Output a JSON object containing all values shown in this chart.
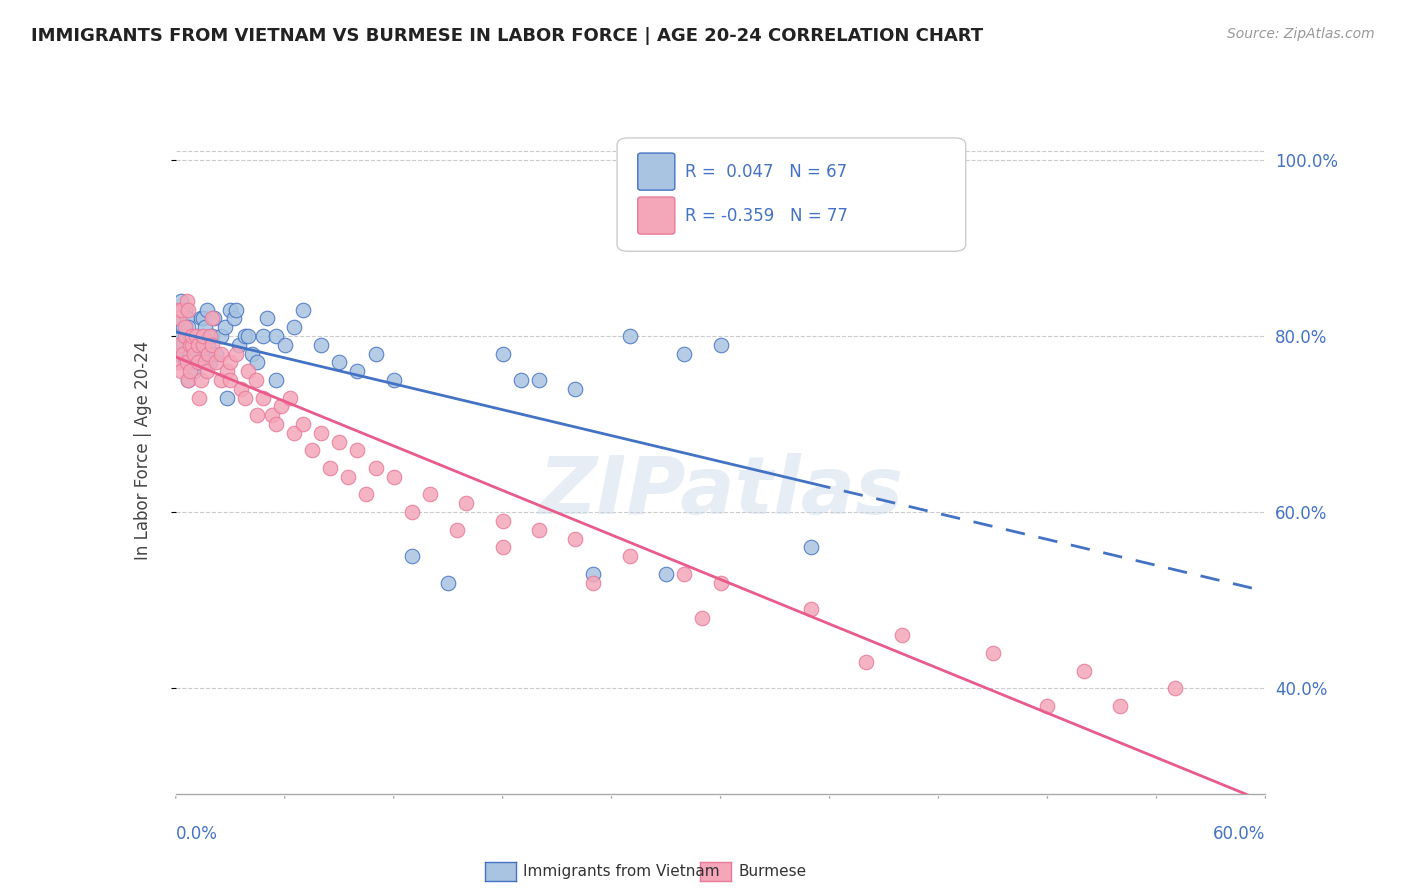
{
  "title": "IMMIGRANTS FROM VIETNAM VS BURMESE IN LABOR FORCE | AGE 20-24 CORRELATION CHART",
  "source": "Source: ZipAtlas.com",
  "ylabel": "In Labor Force | Age 20-24",
  "xmin": 0.0,
  "xmax": 0.6,
  "ymin": 0.28,
  "ymax": 1.06,
  "yticks": [
    0.4,
    0.6,
    0.8,
    1.0
  ],
  "ytick_labels": [
    "40.0%",
    "60.0%",
    "80.0%",
    "100.0%"
  ],
  "color_viet": "#a8c4e0",
  "color_burm": "#f4a7b9",
  "color_viet_line": "#4472c4",
  "color_burm_line": "#e85b8a",
  "color_axis_label": "#4472c4",
  "color_burm_edge": "#e8799a",
  "background": "#ffffff",
  "watermark": "ZIPatlas",
  "viet_x": [
    0.001,
    0.002,
    0.002,
    0.003,
    0.003,
    0.004,
    0.004,
    0.005,
    0.005,
    0.006,
    0.006,
    0.007,
    0.007,
    0.008,
    0.008,
    0.009,
    0.009,
    0.01,
    0.011,
    0.012,
    0.013,
    0.014,
    0.015,
    0.015,
    0.016,
    0.017,
    0.018,
    0.018,
    0.019,
    0.02,
    0.021,
    0.022,
    0.025,
    0.027,
    0.028,
    0.03,
    0.032,
    0.033,
    0.035,
    0.038,
    0.04,
    0.042,
    0.045,
    0.048,
    0.05,
    0.055,
    0.055,
    0.06,
    0.065,
    0.07,
    0.08,
    0.09,
    0.1,
    0.11,
    0.12,
    0.13,
    0.15,
    0.18,
    0.19,
    0.2,
    0.22,
    0.23,
    0.25,
    0.27,
    0.28,
    0.3,
    0.35
  ],
  "viet_y": [
    0.79,
    0.78,
    0.82,
    0.8,
    0.84,
    0.81,
    0.79,
    0.83,
    0.77,
    0.82,
    0.8,
    0.75,
    0.81,
    0.8,
    0.78,
    0.77,
    0.79,
    0.76,
    0.78,
    0.8,
    0.77,
    0.82,
    0.8,
    0.82,
    0.81,
    0.83,
    0.79,
    0.78,
    0.77,
    0.8,
    0.82,
    0.78,
    0.8,
    0.81,
    0.73,
    0.83,
    0.82,
    0.83,
    0.79,
    0.8,
    0.8,
    0.78,
    0.77,
    0.8,
    0.82,
    0.8,
    0.75,
    0.79,
    0.81,
    0.83,
    0.79,
    0.77,
    0.76,
    0.78,
    0.75,
    0.55,
    0.52,
    0.78,
    0.75,
    0.75,
    0.74,
    0.53,
    0.8,
    0.53,
    0.78,
    0.79,
    0.56
  ],
  "burm_x": [
    0.001,
    0.001,
    0.002,
    0.002,
    0.003,
    0.003,
    0.004,
    0.005,
    0.005,
    0.006,
    0.006,
    0.007,
    0.007,
    0.008,
    0.008,
    0.009,
    0.009,
    0.01,
    0.011,
    0.012,
    0.012,
    0.013,
    0.014,
    0.015,
    0.015,
    0.016,
    0.017,
    0.018,
    0.019,
    0.02,
    0.02,
    0.022,
    0.025,
    0.025,
    0.028,
    0.03,
    0.03,
    0.033,
    0.036,
    0.038,
    0.04,
    0.044,
    0.045,
    0.048,
    0.053,
    0.055,
    0.058,
    0.063,
    0.065,
    0.07,
    0.075,
    0.08,
    0.085,
    0.09,
    0.095,
    0.1,
    0.105,
    0.11,
    0.12,
    0.13,
    0.14,
    0.155,
    0.16,
    0.18,
    0.18,
    0.2,
    0.22,
    0.23,
    0.25,
    0.28,
    0.29,
    0.3,
    0.35,
    0.38,
    0.4,
    0.45,
    0.48,
    0.5,
    0.52,
    0.55
  ],
  "burm_y": [
    0.77,
    0.83,
    0.79,
    0.82,
    0.76,
    0.83,
    0.78,
    0.8,
    0.81,
    0.77,
    0.84,
    0.75,
    0.83,
    0.76,
    0.79,
    0.79,
    0.8,
    0.78,
    0.8,
    0.77,
    0.79,
    0.73,
    0.75,
    0.79,
    0.8,
    0.77,
    0.76,
    0.78,
    0.8,
    0.79,
    0.82,
    0.77,
    0.75,
    0.78,
    0.76,
    0.77,
    0.75,
    0.78,
    0.74,
    0.73,
    0.76,
    0.75,
    0.71,
    0.73,
    0.71,
    0.7,
    0.72,
    0.73,
    0.69,
    0.7,
    0.67,
    0.69,
    0.65,
    0.68,
    0.64,
    0.67,
    0.62,
    0.65,
    0.64,
    0.6,
    0.62,
    0.58,
    0.61,
    0.59,
    0.56,
    0.58,
    0.57,
    0.52,
    0.55,
    0.53,
    0.48,
    0.52,
    0.49,
    0.43,
    0.46,
    0.44,
    0.38,
    0.42,
    0.38,
    0.4
  ]
}
